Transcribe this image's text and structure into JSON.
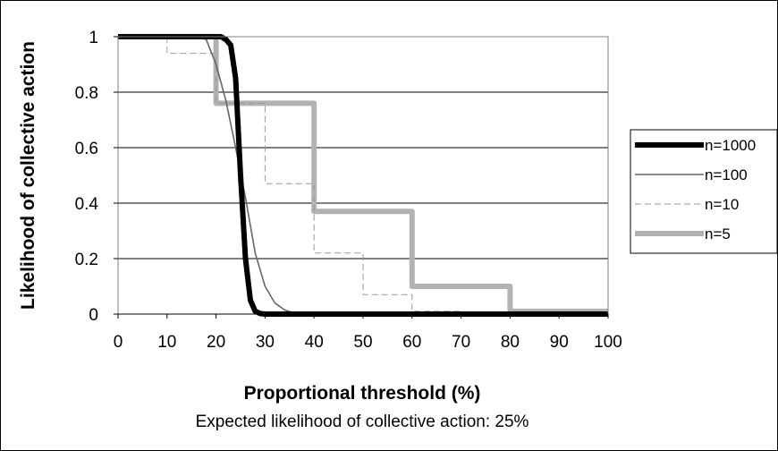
{
  "chart_data": {
    "type": "line",
    "title": "",
    "xlabel": "Proportional threshold (%)",
    "ylabel": "Likelihood of collective action",
    "note": "Expected likelihood of collective action: 25%",
    "xlim": [
      0,
      100
    ],
    "ylim": [
      0,
      1
    ],
    "xticks": [
      0,
      10,
      20,
      30,
      40,
      50,
      60,
      70,
      80,
      90,
      100
    ],
    "yticks": [
      0,
      0.2,
      0.4,
      0.6,
      0.8,
      1
    ],
    "ytick_labels": [
      "0",
      "0.2",
      "0.4",
      "0.6",
      "0.8",
      "1"
    ],
    "grid": "horizontal",
    "legend_position": "right",
    "series": [
      {
        "name": "n=1000",
        "color": "#000000",
        "style": "solid-thick",
        "x": [
          0,
          20,
          21,
          22,
          23,
          24,
          25,
          26,
          27,
          28,
          29,
          30,
          100
        ],
        "y": [
          1,
          1,
          1,
          0.99,
          0.97,
          0.85,
          0.5,
          0.2,
          0.05,
          0.01,
          0.002,
          0,
          0
        ]
      },
      {
        "name": "n=100",
        "color": "#666666",
        "style": "solid-thin",
        "x": [
          0,
          16,
          18,
          20,
          22,
          24,
          26,
          28,
          30,
          32,
          34,
          36,
          38,
          100
        ],
        "y": [
          1,
          1,
          0.99,
          0.9,
          0.77,
          0.6,
          0.42,
          0.22,
          0.1,
          0.04,
          0.015,
          0.004,
          0.001,
          0
        ]
      },
      {
        "name": "n=10",
        "color": "#999999",
        "style": "dashed-thin",
        "x": [
          0,
          10,
          10,
          20,
          20,
          30,
          30,
          40,
          40,
          50,
          50,
          60,
          60,
          70,
          70,
          100
        ],
        "y": [
          1,
          1,
          0.94,
          0.94,
          0.76,
          0.76,
          0.47,
          0.47,
          0.22,
          0.22,
          0.07,
          0.07,
          0.01,
          0.01,
          0,
          0
        ]
      },
      {
        "name": "n=5",
        "color": "#b2b2b2",
        "style": "solid-thick",
        "x": [
          0,
          20,
          20,
          40,
          40,
          60,
          60,
          80,
          80,
          100
        ],
        "y": [
          1,
          1,
          0.76,
          0.76,
          0.37,
          0.37,
          0.1,
          0.1,
          0.01,
          0.01
        ]
      }
    ]
  }
}
